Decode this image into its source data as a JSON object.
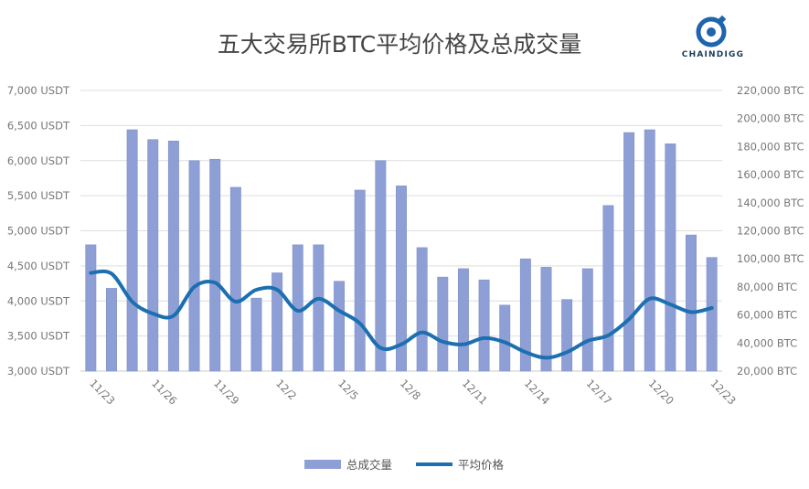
{
  "brand": {
    "text": "CHAINDIGG",
    "color": "#1f64ae"
  },
  "chart_data": {
    "type": "bar+line",
    "title": "五大交易所BTC平均价格及总成交量",
    "categories": [
      "11/23",
      "11/24",
      "11/25",
      "11/26",
      "11/27",
      "11/28",
      "11/29",
      "11/30",
      "12/1",
      "12/2",
      "12/3",
      "12/4",
      "12/5",
      "12/6",
      "12/7",
      "12/8",
      "12/9",
      "12/10",
      "12/11",
      "12/12",
      "12/13",
      "12/14",
      "12/15",
      "12/16",
      "12/17",
      "12/18",
      "12/19",
      "12/20",
      "12/21",
      "12/22",
      "12/23"
    ],
    "x_tick_labels": [
      "11/23",
      "11/26",
      "11/29",
      "12/2",
      "12/5",
      "12/8",
      "12/11",
      "12/14",
      "12/17",
      "12/20",
      "12/23"
    ],
    "left_axis": {
      "ylim": [
        3000,
        7000
      ],
      "ticks": [
        "3,000 USDT",
        "3,500 USDT",
        "4,000 USDT",
        "4,500 USDT",
        "5,000 USDT",
        "5,500 USDT",
        "6,000 USDT",
        "6,500 USDT",
        "7,000 USDT"
      ]
    },
    "right_axis": {
      "ylim": [
        20000,
        220000
      ],
      "ticks": [
        "20,000 BTC",
        "40,000 BTC",
        "60,000 BTC",
        "80,000 BTC",
        "100,000 BTC",
        "120,000 BTC",
        "140,000 BTC",
        "160,000 BTC",
        "180,000 BTC",
        "200,000 BTC",
        "220,000 BTC"
      ]
    },
    "grid": true,
    "legend_position": "bottom",
    "series": [
      {
        "name": "总成交量",
        "type": "bar",
        "axis": "right",
        "color": "#8e9fd6",
        "values": [
          110000,
          79000,
          192000,
          185000,
          184000,
          170000,
          171000,
          151000,
          72000,
          90000,
          110000,
          110000,
          84000,
          149000,
          170000,
          152000,
          108000,
          87000,
          93000,
          85000,
          67000,
          100000,
          94000,
          71000,
          93000,
          138000,
          190000,
          192000,
          182000,
          117000,
          101000
        ]
      },
      {
        "name": "平均价格",
        "type": "line",
        "axis": "left",
        "color": "#1c6fb0",
        "values": [
          4400,
          4390,
          3990,
          3820,
          3790,
          4200,
          4260,
          3990,
          4160,
          4160,
          3860,
          4030,
          3860,
          3680,
          3330,
          3380,
          3550,
          3420,
          3380,
          3470,
          3410,
          3270,
          3190,
          3270,
          3430,
          3510,
          3740,
          4030,
          3950,
          3840,
          3900
        ]
      }
    ]
  }
}
